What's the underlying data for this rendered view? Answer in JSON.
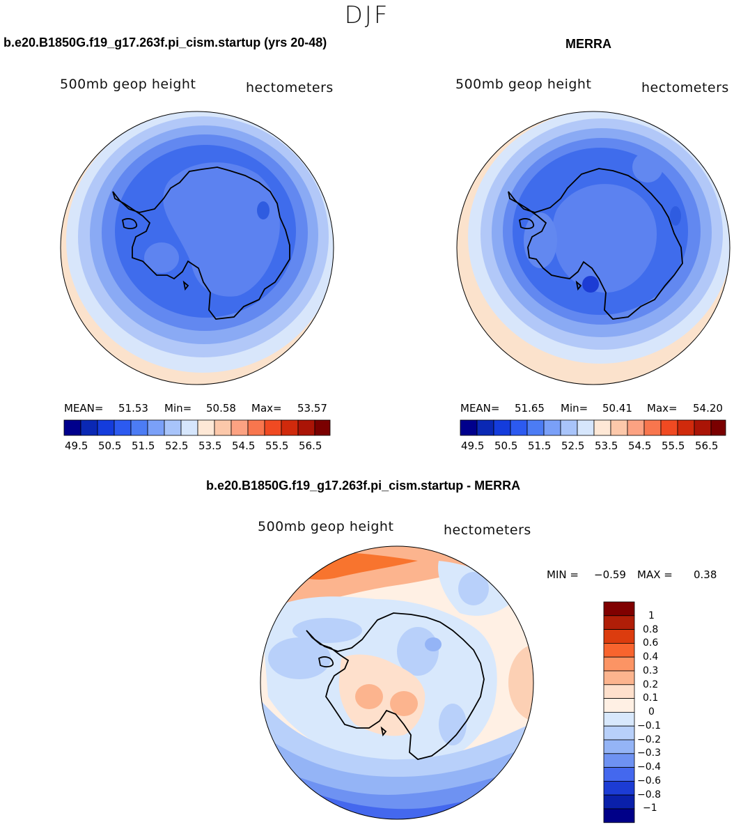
{
  "season": "DJF",
  "left_panel": {
    "title": "b.e20.B1850G.f19_g17.263f.pi_cism.startup (yrs 20-48)",
    "variable": "500mb geop height",
    "units": "hectometers",
    "mean_label": "MEAN=",
    "mean_value": "51.53",
    "min_label": "Min=",
    "min_value": "50.58",
    "max_label": "Max=",
    "max_value": "53.57"
  },
  "right_panel": {
    "title": "MERRA",
    "variable": "500mb geop height",
    "units": "hectometers",
    "mean_label": "MEAN=",
    "mean_value": "51.65",
    "min_label": "Min=",
    "min_value": "50.41",
    "max_label": "Max=",
    "max_value": "54.20"
  },
  "diff_panel": {
    "title": "b.e20.B1850G.f19_g17.263f.pi_cism.startup - MERRA",
    "variable": "500mb geop height",
    "units": "hectometers",
    "min_label": "MIN =",
    "min_value": "−0.59",
    "max_label": "MAX =",
    "max_value": "0.38"
  },
  "chart_data": [
    {
      "type": "heatmap",
      "title": "b.e20.B1850G.f19_g17.263f.pi_cism.startup (yrs 20-48)",
      "projection": "south polar stereographic",
      "mean": 51.53,
      "min": 50.58,
      "max": 53.57,
      "colorbar_ticks": [
        "49.5",
        "50.5",
        "51.5",
        "52.5",
        "53.5",
        "54.5",
        "55.5",
        "56.5"
      ],
      "colors": [
        "#00008c",
        "#0a28b4",
        "#143cdc",
        "#2c5af0",
        "#4c7cf4",
        "#7aa0f8",
        "#a8c4fa",
        "#d6e6fc",
        "#fee8d6",
        "#fcc8aa",
        "#fca282",
        "#f8764e",
        "#f04a22",
        "#d02a0c",
        "#aa1406",
        "#7a0000"
      ]
    },
    {
      "type": "heatmap",
      "title": "MERRA",
      "projection": "south polar stereographic",
      "mean": 51.65,
      "min": 50.41,
      "max": 54.2,
      "colorbar_ticks": [
        "49.5",
        "50.5",
        "51.5",
        "52.5",
        "53.5",
        "54.5",
        "55.5",
        "56.5"
      ],
      "colors": [
        "#00008c",
        "#0a28b4",
        "#143cdc",
        "#2c5af0",
        "#4c7cf4",
        "#7aa0f8",
        "#a8c4fa",
        "#d6e6fc",
        "#fee8d6",
        "#fcc8aa",
        "#fca282",
        "#f8764e",
        "#f04a22",
        "#d02a0c",
        "#aa1406",
        "#7a0000"
      ]
    },
    {
      "type": "heatmap",
      "title": "b.e20.B1850G.f19_g17.263f.pi_cism.startup - MERRA",
      "projection": "south polar stereographic",
      "min": -0.59,
      "max": 0.38,
      "colorbar_ticks": [
        "1",
        "0.8",
        "0.6",
        "0.4",
        "0.3",
        "0.2",
        "0.1",
        "0",
        "−0.1",
        "−0.2",
        "−0.3",
        "−0.4",
        "−0.6",
        "−0.8",
        "−1"
      ],
      "colors": [
        "#800000",
        "#b01e08",
        "#dc3c0e",
        "#f8642e",
        "#fc9464",
        "#fcb48e",
        "#fee0cc",
        "#fff0e4",
        "#d8e8fc",
        "#b8d0fa",
        "#94b4f6",
        "#6e92f2",
        "#4468ee",
        "#1c3cd4",
        "#0a20aa",
        "#000088"
      ]
    }
  ]
}
